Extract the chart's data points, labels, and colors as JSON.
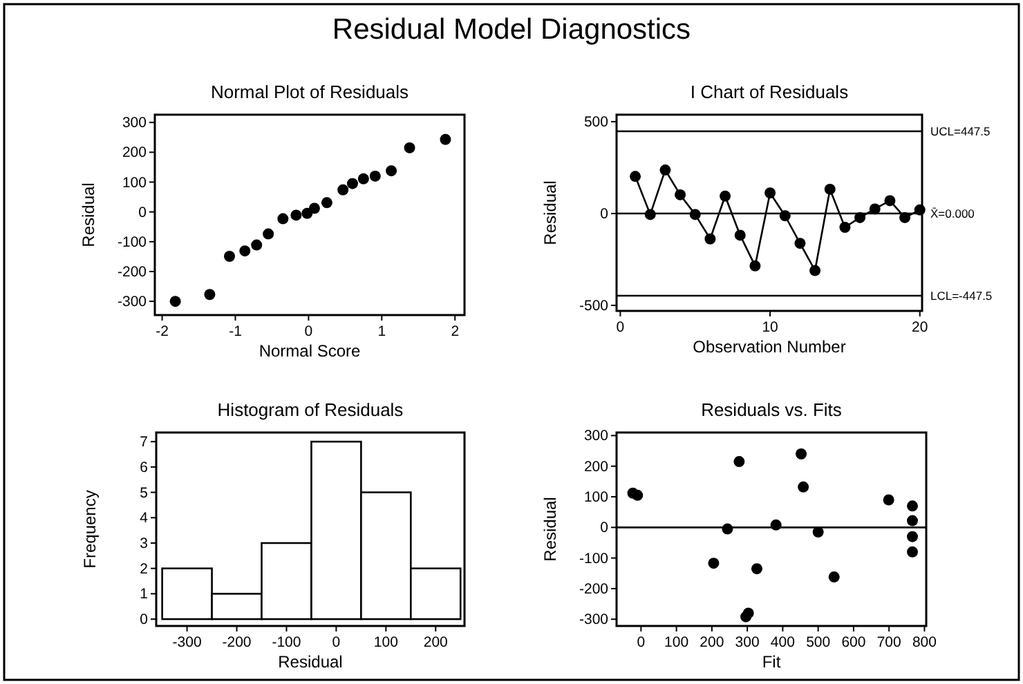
{
  "chart_data": [
    {
      "type": "scatter",
      "title": "Normal Plot of Residuals",
      "xlabel": "Normal Score",
      "ylabel": "Residual",
      "annotations": [
        "Residual Model Diagnostics"
      ],
      "color": "#000000",
      "marker": "circle",
      "x": [
        -1.82,
        -1.35,
        -1.08,
        -0.87,
        -0.71,
        -0.55,
        -0.35,
        -0.17,
        -0.02,
        0.08,
        0.25,
        0.47,
        0.6,
        0.75,
        0.91,
        1.13,
        1.38,
        1.87
      ],
      "values": [
        -300,
        -277,
        -149,
        -131,
        -111,
        -74,
        -23,
        -11,
        -5,
        12,
        31,
        74,
        95,
        111,
        120,
        138,
        215,
        243
      ],
      "xlim": [
        -2.1,
        2.13
      ],
      "ylim": [
        -346,
        326
      ],
      "xticks": [
        -2,
        -1,
        0,
        1,
        2
      ],
      "yticks": [
        -300,
        -200,
        -100,
        0,
        100,
        200,
        300
      ]
    },
    {
      "type": "line",
      "title": "I Chart of Residuals",
      "xlabel": "Observation Number",
      "ylabel": "Residual",
      "color": "#000000",
      "marker": "circle",
      "x": [
        1,
        2,
        3,
        4,
        5,
        6,
        7,
        8,
        9,
        10,
        11,
        12,
        13,
        14,
        15,
        16,
        17,
        18,
        19,
        20
      ],
      "values": [
        202,
        -5,
        237,
        102,
        -5,
        -138,
        95,
        -118,
        -285,
        112,
        -12,
        -162,
        -310,
        132,
        -75,
        -22,
        25,
        70,
        -22,
        20
      ],
      "xlim": [
        -0.25,
        20.15
      ],
      "ylim": [
        -530,
        538
      ],
      "xticks": [
        0,
        10,
        20
      ],
      "yticks": [
        -500,
        0,
        500
      ],
      "ref_lines": [
        {
          "axis": "y",
          "value": 447.5,
          "label": "UCL=447.5",
          "color": "#000000"
        },
        {
          "axis": "y",
          "value": 0,
          "label": "X̄=0.000",
          "color": "#000000"
        },
        {
          "axis": "y",
          "value": -447.5,
          "label": "LCL=-447.5",
          "color": "#000000"
        }
      ]
    },
    {
      "type": "histogram",
      "title": "Histogram of Residuals",
      "xlabel": "Residual",
      "ylabel": "Frequency",
      "color": "#ffffff",
      "bins": [
        -350,
        -250,
        -150,
        -50,
        50,
        150,
        250
      ],
      "values": [
        2,
        1,
        3,
        7,
        5,
        2
      ],
      "xlim": [
        -362,
        258
      ],
      "ylim": [
        -0.27,
        7.36
      ],
      "xticks": [
        -300,
        -200,
        -100,
        0,
        100,
        200
      ],
      "yticks": [
        0,
        1,
        2,
        3,
        4,
        5,
        6,
        7
      ]
    },
    {
      "type": "scatter",
      "title": "Residuals vs. Fits",
      "xlabel": "Fit",
      "ylabel": "Residual",
      "color": "#000000",
      "marker": "circle",
      "x": [
        -23,
        -10,
        205,
        244,
        277,
        296,
        303,
        327,
        381,
        452,
        458,
        500,
        545,
        699,
        766,
        766,
        766,
        766
      ],
      "values": [
        112,
        105,
        -117,
        -5,
        215,
        -292,
        -280,
        -135,
        8,
        240,
        132,
        -15,
        -162,
        90,
        70,
        22,
        -30,
        -80
      ],
      "xlim": [
        -69,
        805
      ],
      "ylim": [
        -322,
        310
      ],
      "xticks": [
        0,
        100,
        200,
        300,
        400,
        500,
        600,
        700,
        800
      ],
      "yticks": [
        -300,
        -200,
        -100,
        0,
        100,
        200,
        300
      ],
      "ref_lines": [
        {
          "axis": "y",
          "value": 0,
          "color": "#000000"
        }
      ]
    }
  ]
}
